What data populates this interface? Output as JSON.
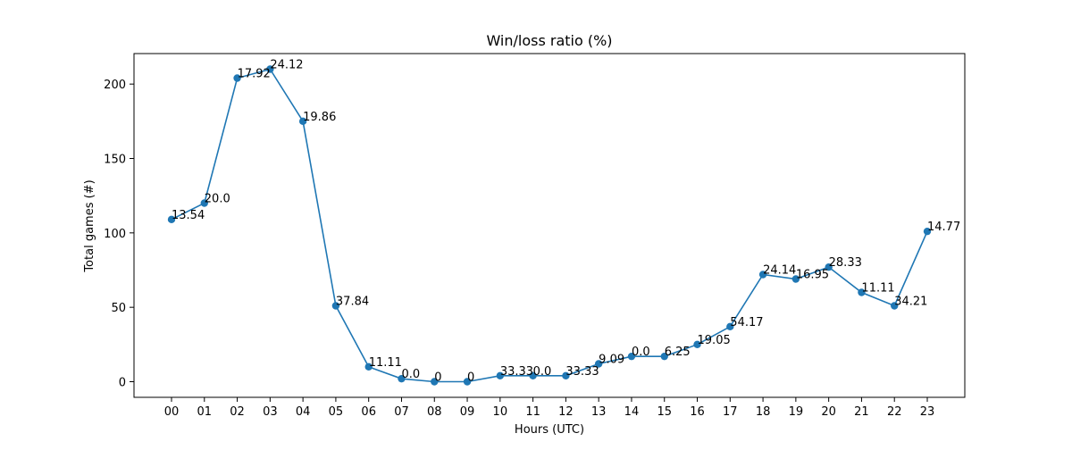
{
  "chart_data": {
    "type": "line",
    "title": "Win/loss ratio (%)",
    "xlabel": "Hours (UTC)",
    "ylabel": "Total games (#)",
    "categories": [
      "00",
      "01",
      "02",
      "03",
      "04",
      "05",
      "06",
      "07",
      "08",
      "09",
      "10",
      "11",
      "12",
      "13",
      "14",
      "15",
      "16",
      "17",
      "18",
      "19",
      "20",
      "21",
      "22",
      "23"
    ],
    "values": [
      109,
      120,
      204,
      210,
      175,
      51,
      10,
      2,
      0,
      0,
      4,
      4,
      4,
      12,
      17,
      17,
      25,
      37,
      72,
      69,
      77,
      60,
      51,
      101
    ],
    "data_labels": [
      "13.54",
      "20.0",
      "17.92",
      "24.12",
      "19.86",
      "37.84",
      "11.11",
      "0.0",
      "0",
      "0",
      "33.33",
      "0.0",
      "33.33",
      "9.09",
      "0.0",
      "6.25",
      "19.05",
      "54.17",
      "24.14",
      "16.95",
      "28.33",
      "11.11",
      "34.21",
      "14.77"
    ],
    "yticks": [
      0,
      50,
      100,
      150,
      200
    ],
    "ylim": [
      -10.5,
      220.5
    ],
    "grid": false,
    "line_color": "#1f77b4"
  }
}
